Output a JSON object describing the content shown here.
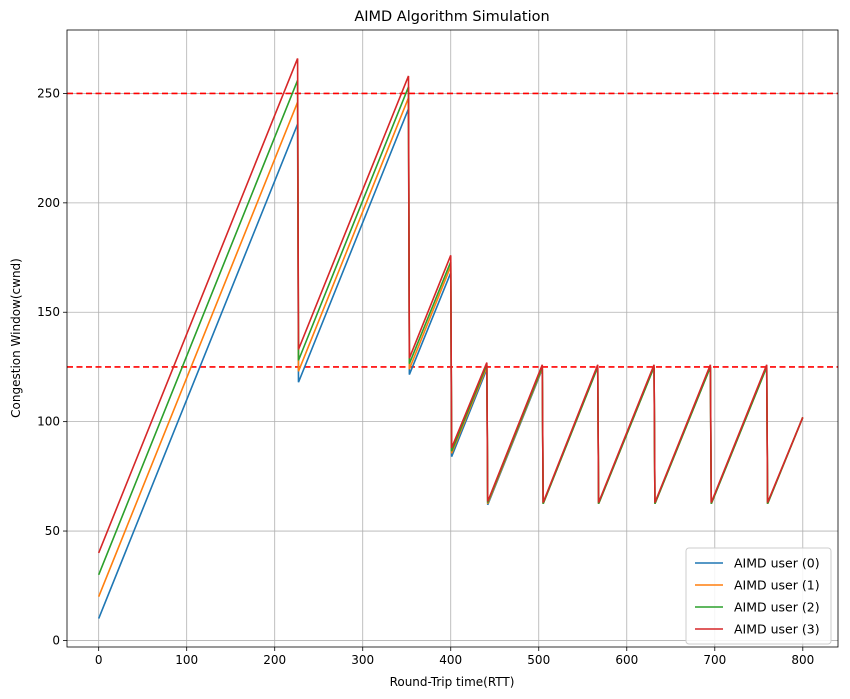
{
  "chart_data": {
    "type": "line",
    "title": "AIMD Algorithm Simulation",
    "xlabel": "Round-Trip time(RTT)",
    "ylabel": "Congestion Window(cwnd)",
    "xlim": [
      -36,
      840
    ],
    "ylim": [
      -3,
      279
    ],
    "xticks": [
      0,
      100,
      200,
      300,
      400,
      500,
      600,
      700,
      800
    ],
    "yticks": [
      0,
      50,
      100,
      150,
      200,
      250
    ],
    "grid": true,
    "legend_position": "lower-right",
    "reference_lines": [
      {
        "y": 250,
        "color": "#ff0000",
        "style": "dashed"
      },
      {
        "y": 125,
        "color": "#ff0000",
        "style": "dashed"
      }
    ],
    "series": [
      {
        "name": "AIMD user (0)",
        "color": "#1f77b4",
        "points": [
          [
            0,
            10
          ],
          [
            226,
            236
          ],
          [
            227,
            118
          ],
          [
            352,
            243
          ],
          [
            353,
            121.5
          ],
          [
            400,
            168
          ],
          [
            401,
            84
          ],
          [
            441,
            124
          ],
          [
            442,
            62
          ],
          [
            504,
            124
          ],
          [
            505,
            62.5
          ],
          [
            567,
            125
          ],
          [
            568,
            62.5
          ],
          [
            631,
            125
          ],
          [
            632,
            62.5
          ],
          [
            695,
            125
          ],
          [
            696,
            62.5
          ],
          [
            759,
            125
          ],
          [
            760,
            62.5
          ],
          [
            800,
            102
          ]
        ]
      },
      {
        "name": "AIMD user (1)",
        "color": "#ff7f0e",
        "points": [
          [
            0,
            20
          ],
          [
            226,
            246
          ],
          [
            227,
            123
          ],
          [
            352,
            248
          ],
          [
            353,
            124
          ],
          [
            400,
            171
          ],
          [
            401,
            85.5
          ],
          [
            441,
            125
          ],
          [
            442,
            62.5
          ],
          [
            504,
            124.5
          ],
          [
            505,
            62.5
          ],
          [
            567,
            125
          ],
          [
            568,
            62.5
          ],
          [
            631,
            125
          ],
          [
            632,
            62.5
          ],
          [
            695,
            125
          ],
          [
            696,
            62.5
          ],
          [
            759,
            125
          ],
          [
            760,
            62.5
          ],
          [
            800,
            102
          ]
        ]
      },
      {
        "name": "AIMD user (2)",
        "color": "#2ca02c",
        "points": [
          [
            0,
            30
          ],
          [
            226,
            256
          ],
          [
            227,
            128
          ],
          [
            352,
            253
          ],
          [
            353,
            126.5
          ],
          [
            400,
            173
          ],
          [
            401,
            86.5
          ],
          [
            441,
            126
          ],
          [
            442,
            63
          ],
          [
            504,
            125
          ],
          [
            505,
            62.5
          ],
          [
            567,
            125
          ],
          [
            568,
            62.5
          ],
          [
            631,
            125
          ],
          [
            632,
            62.5
          ],
          [
            695,
            125
          ],
          [
            696,
            62.5
          ],
          [
            759,
            125
          ],
          [
            760,
            62.5
          ],
          [
            800,
            102
          ]
        ]
      },
      {
        "name": "AIMD user (3)",
        "color": "#d62728",
        "points": [
          [
            0,
            40
          ],
          [
            226,
            266
          ],
          [
            227,
            133
          ],
          [
            352,
            258
          ],
          [
            353,
            129
          ],
          [
            400,
            176
          ],
          [
            401,
            88
          ],
          [
            441,
            127
          ],
          [
            442,
            63.5
          ],
          [
            504,
            126
          ],
          [
            505,
            63
          ],
          [
            567,
            126
          ],
          [
            568,
            63
          ],
          [
            631,
            126
          ],
          [
            632,
            63
          ],
          [
            695,
            126
          ],
          [
            696,
            63
          ],
          [
            759,
            126
          ],
          [
            760,
            63
          ],
          [
            800,
            102
          ]
        ]
      }
    ]
  }
}
